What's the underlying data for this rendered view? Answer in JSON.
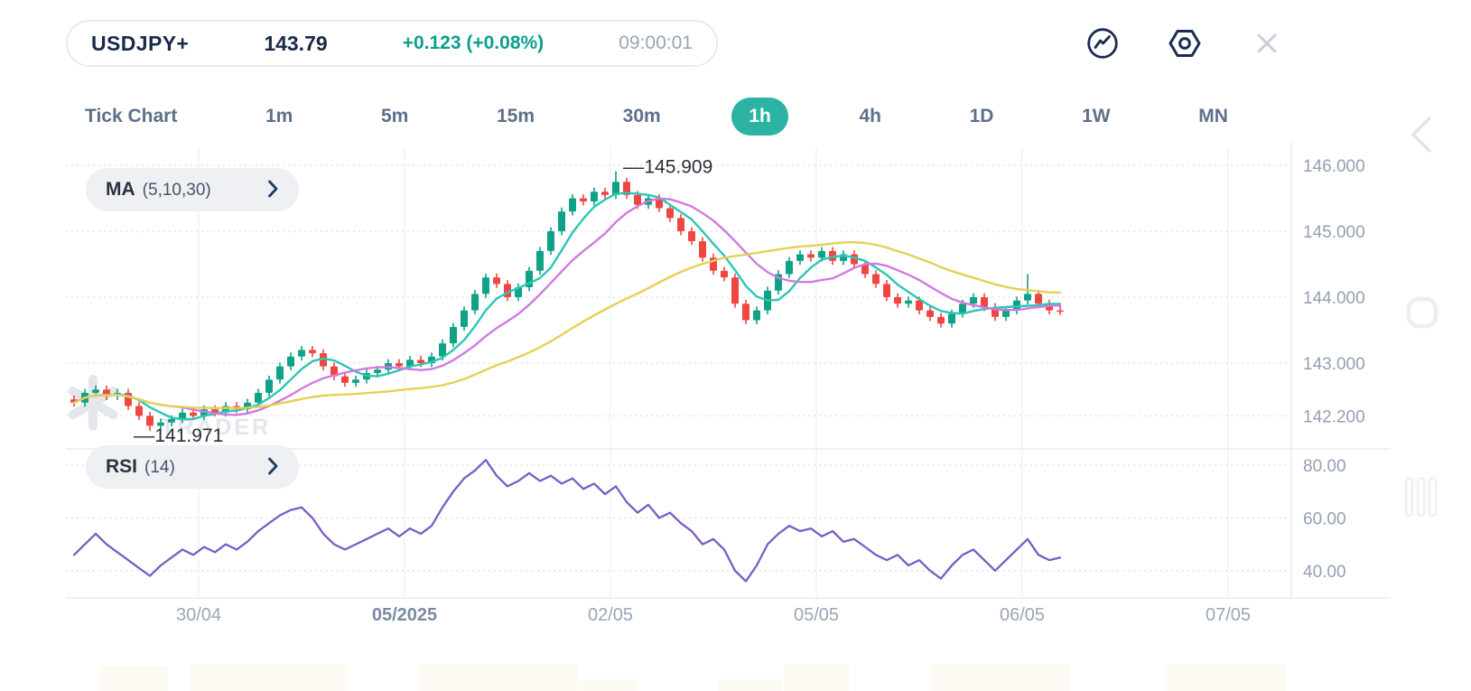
{
  "quote": {
    "symbol": "USDJPY+",
    "price": "143.79",
    "change": "+0.123 (+0.08%)",
    "time": "09:00:01"
  },
  "toolbar": {
    "chart_type_icon": "line-chart-in-circle",
    "settings_icon": "hexagon-gear",
    "close_icon": "close-x"
  },
  "timeframes": {
    "selected": "1h",
    "items": [
      {
        "id": "tick",
        "label": "Tick Chart"
      },
      {
        "id": "1m",
        "label": "1m"
      },
      {
        "id": "5m",
        "label": "5m"
      },
      {
        "id": "15m",
        "label": "15m"
      },
      {
        "id": "30m",
        "label": "30m"
      },
      {
        "id": "1h",
        "label": "1h"
      },
      {
        "id": "4h",
        "label": "4h"
      },
      {
        "id": "1d",
        "label": "1D"
      },
      {
        "id": "1w",
        "label": "1W"
      },
      {
        "id": "mn",
        "label": "MN"
      }
    ]
  },
  "indicators": {
    "ma": {
      "name": "MA",
      "params": "(5,10,30)"
    },
    "rsi": {
      "name": "RSI",
      "params": "(14)"
    }
  },
  "watermark": {
    "text": "TRADER"
  },
  "colors": {
    "accent": "#2cb3a4",
    "navy": "#19294b",
    "change_positive": "#0c9f8c",
    "candle_up": "#0fa287",
    "candle_down": "#ee4743",
    "ma_fast": "#2bc7b4",
    "ma_mid": "#d07ae0",
    "ma_slow": "#e6d054",
    "rsi_line": "#7a5cc5",
    "axis_text": "#94a0b3",
    "date_text": "#9aa6b6",
    "date_text_bold": "#7b89a3",
    "grid_dot": "#dcdfe4",
    "grid_line": "#f1f3f5",
    "axis_line": "#e8ebee",
    "annotation_text": "#2a2f36",
    "watermark_gray": "#e3e6ea"
  },
  "chart_data": [
    {
      "type": "candlestick",
      "title": "USDJPY+ 1h",
      "first_open": 142.45,
      "wick_pad": 0.06,
      "closes": [
        142.4,
        142.55,
        142.6,
        142.5,
        142.55,
        142.35,
        142.2,
        142.05,
        142.1,
        142.15,
        142.25,
        142.2,
        142.3,
        142.25,
        142.35,
        142.3,
        142.4,
        142.55,
        142.75,
        142.95,
        143.1,
        143.2,
        143.15,
        142.95,
        142.8,
        142.7,
        142.75,
        142.85,
        142.9,
        143.0,
        142.95,
        143.05,
        143.0,
        143.1,
        143.3,
        143.55,
        143.8,
        144.05,
        144.3,
        144.2,
        144.0,
        144.15,
        144.4,
        144.7,
        145.0,
        145.3,
        145.5,
        145.45,
        145.6,
        145.55,
        145.75,
        145.55,
        145.4,
        145.5,
        145.35,
        145.2,
        145.0,
        144.85,
        144.6,
        144.4,
        144.3,
        143.9,
        143.65,
        143.8,
        144.1,
        144.35,
        144.55,
        144.65,
        144.6,
        144.7,
        144.55,
        144.65,
        144.5,
        144.35,
        144.2,
        144.0,
        143.9,
        143.95,
        143.8,
        143.7,
        143.6,
        143.75,
        143.9,
        144.0,
        143.85,
        143.7,
        143.8,
        143.95,
        144.05,
        143.9,
        143.8,
        143.79
      ],
      "extra_high_wicks": {
        "88": 144.35
      },
      "high_annotation": {
        "index": 50,
        "price": 145.909,
        "label": "––145.909"
      },
      "low_annotation": {
        "index": 7,
        "price": 141.971,
        "label": "––141.971"
      },
      "y_ticks": [
        {
          "value": 146.0,
          "label": "146.000"
        },
        {
          "value": 145.0,
          "label": "145.000"
        },
        {
          "value": 144.0,
          "label": "144.000"
        },
        {
          "value": 143.0,
          "label": "143.000"
        },
        {
          "value": 142.2,
          "label": "142.200"
        }
      ],
      "x_ticks": [
        {
          "label": "30/04",
          "bold": false
        },
        {
          "label": "05/2025",
          "bold": true
        },
        {
          "label": "02/05",
          "bold": false
        },
        {
          "label": "05/05",
          "bold": false
        },
        {
          "label": "06/05",
          "bold": false
        },
        {
          "label": "07/05",
          "bold": false
        }
      ],
      "ma_overlays": [
        {
          "period": 5
        },
        {
          "period": 10
        },
        {
          "period": 30
        }
      ],
      "ylim": [
        141.8,
        146.3
      ],
      "grid": true,
      "legend_position": "none"
    },
    {
      "type": "line",
      "name": "RSI(14)",
      "values": [
        46,
        50,
        54,
        50,
        47,
        44,
        41,
        38,
        42,
        45,
        48,
        46,
        49,
        47,
        50,
        48,
        51,
        55,
        58,
        61,
        63,
        64,
        60,
        54,
        50,
        48,
        50,
        52,
        54,
        56,
        53,
        56,
        54,
        57,
        64,
        70,
        75,
        78,
        82,
        76,
        72,
        74,
        77,
        74,
        76,
        73,
        75,
        71,
        73,
        69,
        72,
        66,
        62,
        65,
        60,
        62,
        58,
        55,
        50,
        52,
        48,
        40,
        36,
        42,
        50,
        54,
        57,
        55,
        56,
        53,
        55,
        51,
        52,
        49,
        46,
        44,
        46,
        42,
        44,
        40,
        37,
        42,
        46,
        48,
        44,
        40,
        44,
        48,
        52,
        46,
        44,
        45
      ],
      "y_ticks": [
        {
          "value": 80,
          "label": "80.00"
        },
        {
          "value": 60,
          "label": "60.00"
        },
        {
          "value": 40,
          "label": "40.00"
        }
      ],
      "ylim": [
        30,
        88
      ],
      "grid": true
    }
  ]
}
